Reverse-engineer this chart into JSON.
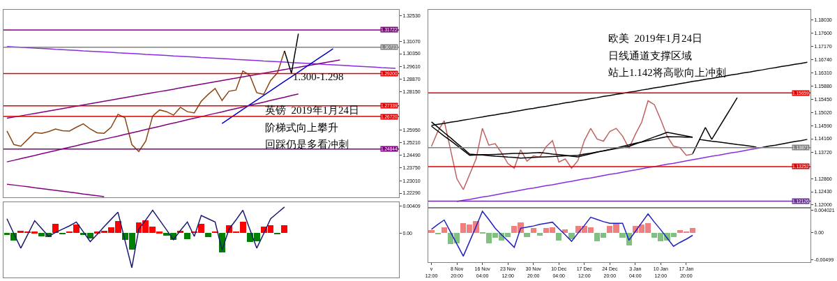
{
  "chart_data": [
    {
      "type": "line",
      "categories": [
        null,
        null,
        null,
        null,
        null,
        null,
        null,
        null,
        null,
        null,
        null,
        null,
        null,
        null,
        null,
        null,
        null,
        null,
        null,
        null,
        null,
        null,
        null,
        null,
        null,
        null,
        null,
        null,
        null,
        null,
        null,
        null,
        null,
        null,
        null,
        null,
        null,
        null,
        null,
        null,
        null,
        null,
        null,
        null,
        null,
        null,
        null,
        null,
        null,
        null,
        null,
        null,
        null,
        null,
        null,
        null,
        null
      ],
      "tick_labels": "y",
      "ylim": [
        1.2205,
        1.3289
      ],
      "yticks": [
        {
          "value": 1.3253,
          "label": "1.32530"
        },
        {
          "value": 1.3107,
          "label": "1.31070"
        },
        {
          "value": 1.3035,
          "label": "1.30350"
        },
        {
          "value": 1.2961,
          "label": "1.29610"
        },
        {
          "value": 1.2887,
          "label": "1.28870"
        },
        {
          "value": 1.2815,
          "label": "1.28150"
        },
        {
          "value": 1.2595,
          "label": "1.25950"
        },
        {
          "value": 1.2521,
          "label": "1.25210"
        },
        {
          "value": 1.2449,
          "label": "1.24490"
        },
        {
          "value": 1.2375,
          "label": "1.23750"
        },
        {
          "value": 1.2301,
          "label": "1.23010"
        },
        {
          "value": 1.2229,
          "label": "1.22290"
        }
      ],
      "series": [
        {
          "color": "#8b4513",
          "values": [
            1.2588,
            1.251,
            1.25,
            1.254,
            1.258,
            1.2575,
            1.2585,
            1.26,
            1.259,
            1.2588,
            1.261,
            1.263,
            1.26,
            1.2578,
            1.2575,
            1.261,
            1.2685,
            1.2665,
            1.251,
            1.247,
            1.253,
            1.2675,
            1.271,
            1.27,
            1.268,
            1.2725,
            1.27,
            1.2693,
            1.276,
            1.28,
            1.2834,
            1.2765,
            1.2818,
            1.2825,
            1.2935,
            1.291,
            1.281,
            1.28,
            1.288,
            1.2925,
            1.3051,
            null,
            null,
            null,
            null,
            null,
            null,
            null,
            null,
            null,
            null,
            null,
            null,
            null,
            null,
            null,
            null
          ]
        },
        {
          "color": "#8a2be2",
          "values": [
            1.3076,
            1.3074,
            1.3072,
            1.3069,
            1.3067,
            1.3065,
            1.3063,
            1.306,
            1.3058,
            1.3056,
            1.3054,
            1.3051,
            1.3049,
            1.3047,
            1.3045,
            1.3043,
            1.304,
            1.3038,
            1.3036,
            1.3034,
            1.3031,
            1.3029,
            1.3027,
            1.3025,
            1.3022,
            1.302,
            1.3018,
            1.3016,
            1.3013,
            1.3011,
            1.3009,
            1.3007,
            1.3005,
            1.3002,
            1.3,
            1.2998,
            1.2996,
            1.2993,
            1.2991,
            1.2989,
            1.2987,
            1.2984,
            1.2982,
            1.298,
            1.2978,
            1.2976,
            1.2973,
            1.2971,
            1.2969,
            1.2967,
            1.2964,
            1.2962,
            1.296,
            1.2958,
            1.2955,
            1.2953,
            1.2951
          ]
        },
        {
          "color": "#800080",
          "values": [
            1.2662,
            1.2669,
            1.2676,
            1.2683,
            1.269,
            1.2697,
            1.2704,
            1.2711,
            1.2718,
            1.2725,
            1.2732,
            1.2739,
            1.2746,
            1.2753,
            1.276,
            1.2767,
            1.2774,
            1.2781,
            1.2788,
            1.2795,
            1.2802,
            1.2809,
            1.2816,
            1.2823,
            1.283,
            1.2838,
            1.2845,
            1.2852,
            1.2859,
            1.2866,
            1.2873,
            1.288,
            1.2887,
            1.2894,
            1.2901,
            1.2908,
            1.2915,
            1.2922,
            1.2929,
            1.2936,
            1.2943,
            1.295,
            1.2957,
            1.2964,
            1.2971,
            1.2978,
            1.2985,
            1.2992,
            1.2999,
            null,
            null,
            null,
            null,
            null,
            null,
            null,
            null
          ]
        },
        {
          "color": "#800080",
          "values": [
            1.241,
            1.2419,
            1.2429,
            1.2438,
            1.2447,
            1.2457,
            1.2466,
            1.2475,
            1.2485,
            1.2494,
            1.2503,
            1.2513,
            1.2522,
            1.2531,
            1.2541,
            1.255,
            1.2559,
            1.2569,
            1.2578,
            1.2587,
            1.2597,
            1.2606,
            1.2615,
            1.2625,
            1.2634,
            1.2643,
            1.2653,
            1.2662,
            1.2671,
            1.2681,
            1.269,
            1.2699,
            1.2709,
            1.2718,
            1.2727,
            1.2737,
            1.2746,
            1.2755,
            1.2765,
            1.2774,
            1.2783,
            1.2793,
            1.2802,
            null,
            null,
            null,
            null,
            null,
            null,
            null,
            null,
            null,
            null,
            null,
            null,
            null,
            null
          ]
        },
        {
          "color": "#0000cd",
          "values": [
            null,
            null,
            null,
            null,
            null,
            null,
            null,
            null,
            null,
            null,
            null,
            null,
            null,
            null,
            null,
            null,
            null,
            null,
            null,
            null,
            null,
            null,
            null,
            null,
            null,
            null,
            null,
            null,
            null,
            null,
            null,
            1.2632,
            1.2659,
            1.2686,
            1.2713,
            1.274,
            1.2767,
            1.2794,
            1.2821,
            1.2848,
            1.2875,
            1.2902,
            1.2929,
            1.2956,
            1.2983,
            1.301,
            1.3037,
            1.3064,
            null,
            null,
            null,
            null,
            null,
            null,
            null,
            null,
            null
          ]
        },
        {
          "color": "#800080",
          "values": [
            1.2281,
            1.2276,
            1.2271,
            1.2266,
            1.226,
            1.2255,
            1.225,
            1.2245,
            1.224,
            1.2235,
            1.223,
            1.2224,
            1.2219,
            1.2214,
            1.2209,
            null,
            null,
            null,
            null,
            null,
            null,
            null,
            null,
            null,
            null,
            null,
            null,
            null,
            null,
            null,
            null,
            null,
            null,
            null,
            null,
            null,
            null,
            null,
            null,
            null,
            null,
            null,
            null,
            null,
            null,
            null,
            null,
            null,
            null,
            null,
            null,
            null,
            null,
            null,
            null,
            null,
            null
          ]
        },
        {
          "color": "#000000",
          "values": [
            null,
            null,
            null,
            null,
            null,
            null,
            null,
            null,
            null,
            null,
            null,
            null,
            null,
            null,
            null,
            null,
            null,
            null,
            null,
            null,
            null,
            null,
            null,
            null,
            null,
            null,
            null,
            null,
            null,
            null,
            null,
            null,
            null,
            null,
            null,
            null,
            null,
            null,
            null,
            null,
            1.3051,
            1.2922,
            1.315,
            null,
            null,
            null,
            null,
            null,
            null,
            null,
            null,
            null,
            null,
            null,
            null,
            null,
            null
          ]
        }
      ],
      "ref_lines": [
        {
          "axis": "y",
          "value": 1.31722,
          "label": "1.31722",
          "color": "#800080"
        },
        {
          "axis": "y",
          "value": 1.30723,
          "label": "1.30723",
          "color": "#808080"
        },
        {
          "axis": "y",
          "value": 1.292,
          "label": "1.29200",
          "color": "#e00000"
        },
        {
          "axis": "y",
          "value": 1.27339,
          "label": "1.27339",
          "color": "#e00000"
        },
        {
          "axis": "y",
          "value": 1.2672,
          "label": "1.26720",
          "color": "#e00000"
        },
        {
          "axis": "y",
          "value": 1.24844,
          "label": "1.24844",
          "color": "#800080"
        }
      ],
      "annotations": [
        "1.300-1.298",
        "英镑  2019年1月24日",
        "阶梯式向上攀升",
        "回踩仍是多看冲刺"
      ]
    },
    {
      "type": "bar",
      "categories": [
        null,
        null,
        null,
        null,
        null,
        null,
        null,
        null,
        null,
        null,
        null,
        null,
        null,
        null,
        null,
        null,
        null,
        null,
        null,
        null,
        null,
        null,
        null,
        null,
        null,
        null,
        null,
        null,
        null,
        null,
        null,
        null,
        null,
        null,
        null,
        null,
        null,
        null,
        null,
        null,
        null,
        null,
        null,
        null,
        null,
        null,
        null,
        null,
        null,
        null,
        null,
        null,
        null,
        null,
        null,
        null,
        null
      ],
      "tick_labels": "y",
      "ylim": [
        -0.0068,
        0.00473
      ],
      "yticks": [
        0.00409,
        {
          "value": 0,
          "label": "0.00"
        }
      ],
      "series": [
        {
          "values": [
            -0.0003,
            -0.0011,
            0.0004,
            0.0003,
            0.0002,
            -0.0005,
            -0.0006,
            0.0014,
            -0.0002,
            0.0003,
            0.0013,
            -0.0003,
            -0.0008,
            0.0002,
            0.0004,
            0.0009,
            0.0019,
            -0.001,
            -0.0025,
            0.0016,
            0.002,
            0.001,
            0.0002,
            -0.0004,
            -0.001,
            0.0004,
            -0.0009,
            0.0003,
            0.0014,
            -0.0006,
            0.0003,
            -0.003,
            0.0012,
            0.0003,
            0.0017,
            -0.0014,
            -0.0012,
            0.001,
            0.0012,
            -0.0002,
            0.0012,
            null,
            null,
            null,
            null,
            null,
            null,
            null,
            null,
            null,
            null,
            null,
            null,
            null,
            null,
            null,
            null
          ],
          "colors": [
            "#008000",
            "#008000",
            "#ff0000",
            "#ff0000",
            "#ff0000",
            "#008000",
            "#008000",
            "#ff0000",
            "#008000",
            "#ff0000",
            "#ff0000",
            "#008000",
            "#008000",
            "#ff0000",
            "#ff0000",
            "#ff0000",
            "#ff0000",
            "#008000",
            "#008000",
            "#ff0000",
            "#ff0000",
            "#ff0000",
            "#ff0000",
            "#008000",
            "#008000",
            "#ff0000",
            "#008000",
            "#ff0000",
            "#ff0000",
            "#008000",
            "#ff0000",
            "#008000",
            "#ff0000",
            "#ff0000",
            "#ff0000",
            "#008000",
            "#008000",
            "#ff0000",
            "#ff0000",
            "#008000",
            "#ff0000",
            null,
            null,
            null,
            null,
            null,
            null,
            null,
            null,
            null,
            null,
            null,
            null,
            null,
            null,
            null,
            null
          ]
        },
        {
          "type": "line",
          "color": "#191970",
          "values": [
            0.0022,
            -0.0001,
            -0.0023,
            -0.0002,
            0.0019,
            0.0007,
            -0.0005,
            0.0001,
            0.0006,
            0.0011,
            0.0017,
            0.0002,
            -0.0013,
            -0.0002,
            0.001,
            0.0021,
            0.0032,
            -0.0011,
            -0.0053,
            0.0006,
            0.002,
            0.0035,
            0.002,
            0.0005,
            -0.001,
            0.0004,
            0.0017,
            -0.0005,
            0.0027,
            0.0022,
            0.0017,
            -0.0026,
            0.0006,
            0.002,
            0.0035,
            0.0006,
            -0.0023,
            -0.0001,
            0.0022,
            0.0031,
            0.004,
            null,
            null,
            null,
            null,
            null,
            null,
            null,
            null,
            null,
            null,
            null,
            null,
            null,
            null,
            null,
            null
          ]
        }
      ]
    },
    {
      "type": "line",
      "categories": [
        null,
        null,
        null,
        null,
        null,
        null,
        null,
        null,
        null,
        null,
        null,
        null,
        null,
        null,
        null,
        null,
        null,
        null,
        null,
        null,
        null,
        null,
        null,
        null,
        null,
        null,
        null,
        null,
        null,
        null,
        null,
        null,
        null,
        null,
        null,
        null,
        null,
        null,
        null,
        null,
        null,
        null,
        null,
        null,
        null,
        null,
        null,
        null,
        null,
        null,
        null,
        null,
        null,
        null,
        null,
        null,
        null,
        null,
        null,
        null
      ],
      "tick_labels": "y",
      "ylim": [
        1.1193,
        1.1837
      ],
      "yticks": [
        {
          "value": 1.1803,
          "label": "1.18030"
        },
        {
          "value": 1.176,
          "label": "1.17600"
        },
        {
          "value": 1.1717,
          "label": "1.17170"
        },
        {
          "value": 1.1674,
          "label": "1.16740"
        },
        {
          "value": 1.1631,
          "label": "1.16310"
        },
        {
          "value": 1.1588,
          "label": "1.15880"
        },
        {
          "value": 1.1545,
          "label": "1.15450"
        },
        {
          "value": 1.1502,
          "label": "1.15020"
        },
        {
          "value": 1.1459,
          "label": "1.14590"
        },
        {
          "value": 1.1416,
          "label": "1.14160"
        },
        {
          "value": 1.1372,
          "label": "1.13720"
        },
        {
          "value": 1.1286,
          "label": "1.12860"
        },
        {
          "value": 1.1243,
          "label": "1.12430"
        },
        {
          "value": 1.12,
          "label": "1.12000"
        }
      ],
      "series": [
        {
          "color": "#c06060",
          "values": [
            1.1391,
            1.144,
            1.1475,
            1.138,
            1.1285,
            1.125,
            1.13,
            1.135,
            1.145,
            1.1395,
            1.14,
            1.137,
            1.1335,
            1.132,
            1.138,
            1.1343,
            1.136,
            1.1356,
            1.139,
            1.141,
            1.134,
            1.135,
            1.132,
            1.1345,
            1.141,
            1.145,
            1.1415,
            1.1408,
            1.144,
            1.145,
            1.1425,
            1.1385,
            1.143,
            1.147,
            1.154,
            1.1527,
            1.1478,
            1.1425,
            1.1392,
            1.1387,
            1.1362,
            1.1366,
            null,
            null,
            null,
            null,
            null,
            null,
            null,
            null,
            null,
            null,
            null,
            null,
            null,
            null,
            null,
            null,
            null,
            null
          ]
        },
        {
          "color": "#000000",
          "values": [
            1.1471,
            1.1454,
            1.1436,
            1.1419,
            1.1401,
            1.1384,
            1.1366,
            1.1364,
            1.1363,
            1.1361,
            1.1359,
            1.1358,
            1.1356,
            1.1355,
            1.1353,
            1.1354,
            1.1355,
            1.1356,
            1.1357,
            1.1358,
            1.1359,
            1.136,
            1.1361,
            1.1362,
            1.1366,
            1.1369,
            1.1373,
            1.1376,
            1.138,
            1.1384,
            1.1387,
            1.1391,
            1.1399,
            1.1406,
            1.1414,
            1.1422,
            1.1429,
            1.1437,
            1.1433,
            1.1429,
            1.1425,
            1.1421,
            null,
            null,
            null,
            null,
            null,
            null,
            null,
            null,
            null,
            null,
            null,
            null,
            null,
            null,
            null,
            null,
            null,
            null
          ]
        },
        {
          "color": "#000000",
          "values": [
            1.1457,
            1.1441,
            1.1425,
            1.141,
            1.1394,
            1.1378,
            1.1362,
            1.1363,
            1.1364,
            1.1364,
            1.1365,
            1.1366,
            1.1367,
            1.1368,
            1.1368,
            1.1369,
            1.137,
            1.1371,
            1.1369,
            1.1366,
            1.1364,
            1.1362,
            1.1359,
            1.1357,
            1.1362,
            1.1367,
            1.1372,
            1.1377,
            1.1381,
            1.1386,
            1.1391,
            1.1396,
            1.1401,
            1.1405,
            1.141,
            1.1414,
            1.1419,
            1.1423,
            1.1422,
            1.1422,
            1.1421,
            1.1421,
            null,
            null,
            null,
            null,
            null,
            null,
            null,
            null,
            null,
            null,
            null,
            null,
            null,
            null,
            null,
            null,
            null,
            null
          ]
        },
        {
          "color": "#000000",
          "values": [
            1.1459,
            1.1463,
            1.1466,
            1.147,
            1.1473,
            1.1477,
            1.148,
            1.1484,
            1.1487,
            1.1491,
            1.1494,
            1.1498,
            1.1501,
            1.1505,
            1.1508,
            1.1512,
            1.1515,
            1.1519,
            1.1522,
            1.1526,
            1.1529,
            1.1533,
            1.1536,
            1.154,
            1.1543,
            1.1547,
            1.155,
            1.1554,
            1.1557,
            1.1561,
            1.1564,
            1.1568,
            1.1571,
            1.1575,
            1.1578,
            1.1582,
            1.1585,
            1.1589,
            1.1592,
            1.1596,
            1.1599,
            1.1603,
            1.1606,
            1.161,
            1.1613,
            1.1617,
            1.162,
            1.1624,
            1.1627,
            1.1631,
            1.1634,
            1.1638,
            1.1641,
            1.1645,
            1.1648,
            1.1652,
            1.1655,
            1.1659,
            1.1662,
            1.1666
          ]
        },
        {
          "color": "#000000",
          "values": [
            null,
            null,
            null,
            null,
            null,
            null,
            null,
            null,
            null,
            null,
            null,
            null,
            null,
            null,
            null,
            null,
            null,
            null,
            null,
            null,
            null,
            null,
            null,
            null,
            null,
            null,
            null,
            null,
            null,
            null,
            null,
            null,
            null,
            null,
            null,
            null,
            null,
            null,
            null,
            null,
            null,
            null,
            null,
            null,
            null,
            null,
            null,
            null,
            null,
            null,
            null,
            null,
            1.1388,
            1.1392,
            1.1395,
            1.1399,
            1.1403,
            1.1407,
            1.141,
            1.1414
          ]
        },
        {
          "color": "#8a2be2",
          "values": [
            null,
            null,
            null,
            null,
            1.1211,
            1.1215,
            1.1218,
            1.1222,
            1.1226,
            1.1229,
            1.1233,
            1.1237,
            1.1241,
            1.1244,
            1.1248,
            1.1252,
            1.1255,
            1.1259,
            1.1263,
            1.1266,
            1.127,
            1.1274,
            1.1277,
            1.1281,
            1.1285,
            1.1288,
            1.1292,
            1.1296,
            1.13,
            1.1303,
            1.1307,
            1.1311,
            1.1314,
            1.1318,
            1.1322,
            1.1325,
            1.1329,
            1.1333,
            1.1336,
            1.134,
            1.1344,
            1.1348,
            1.1351,
            1.1355,
            1.1359,
            1.1362,
            1.1366,
            1.137,
            1.1373,
            1.1377,
            1.1381,
            1.1384,
            1.1388,
            null,
            null,
            null,
            null,
            null,
            null,
            null
          ]
        },
        {
          "color": "#000000",
          "values": [
            null,
            null,
            null,
            null,
            null,
            null,
            null,
            null,
            null,
            null,
            null,
            null,
            null,
            null,
            null,
            null,
            null,
            null,
            null,
            null,
            null,
            null,
            null,
            null,
            null,
            null,
            null,
            null,
            null,
            null,
            null,
            null,
            null,
            null,
            null,
            null,
            null,
            null,
            null,
            null,
            null,
            1.1367,
            1.141,
            1.1453,
            1.1414,
            1.1448,
            1.1482,
            1.1516,
            1.155,
            null,
            null,
            null,
            null,
            null,
            null,
            null,
            null,
            null,
            null,
            null
          ]
        },
        {
          "color": "#000000",
          "values": [
            null,
            null,
            null,
            null,
            null,
            null,
            null,
            null,
            null,
            null,
            null,
            null,
            null,
            null,
            null,
            null,
            null,
            null,
            null,
            null,
            null,
            null,
            null,
            null,
            null,
            null,
            null,
            null,
            null,
            null,
            null,
            null,
            null,
            null,
            null,
            null,
            null,
            null,
            null,
            null,
            null,
            null,
            1.1414,
            1.1411,
            1.1408,
            1.1406,
            1.1403,
            1.14,
            1.1397,
            1.1395,
            1.1392,
            1.1389,
            null,
            null,
            null,
            null,
            null,
            null,
            null,
            null
          ]
        }
      ],
      "ref_lines": [
        {
          "axis": "y",
          "value": 1.15659,
          "label": "1.15659",
          "color": "#e00000"
        },
        {
          "axis": "y",
          "value": 1.13871,
          "label": "1.13871",
          "color": "#808080"
        },
        {
          "axis": "y",
          "value": 1.13252,
          "label": "1.13252",
          "color": "#e00000"
        },
        {
          "axis": "y",
          "value": 1.12126,
          "label": "1.12126",
          "color": "#6a2c9a"
        }
      ],
      "annotations": [
        "欧美  2019年1月24日",
        "日线通道支撑区域",
        "站上1.142将高歌向上冲刺"
      ]
    },
    {
      "type": "bar",
      "categories": [
        "v 12:00",
        null,
        null,
        null,
        "8 Nov 20:00",
        null,
        null,
        null,
        "16 Nov 04:00",
        null,
        null,
        null,
        "23 Nov 12:00",
        null,
        null,
        null,
        "30 Nov 20:00",
        null,
        null,
        null,
        "10 Dec 04:00",
        null,
        null,
        null,
        "17 Dec 12:00",
        null,
        null,
        null,
        "24 Dec 20:00",
        null,
        null,
        null,
        "3 Jan 04:00",
        null,
        null,
        null,
        "10 Jan 12:00",
        null,
        null,
        null,
        "17 Jan 20:00",
        null,
        null,
        null,
        null,
        null,
        null,
        null,
        null,
        null,
        null,
        null,
        null,
        null,
        null,
        null,
        null,
        null,
        null,
        null
      ],
      "ylim": [
        -0.0054,
        0.0044
      ],
      "yticks": [
        0.004021,
        {
          "value": 0,
          "label": "0.00"
        },
        -0.00499
      ],
      "series": [
        {
          "values": [
            0.0004,
            -0.0003,
            0.001,
            -0.0021,
            -0.0019,
            0.0017,
            0.0015,
            0.0021,
            -0.0002,
            -0.0019,
            -0.001,
            -0.0014,
            -0.0008,
            0.0012,
            0.0019,
            -0.0008,
            0.0008,
            -0.0005,
            0.0008,
            0.001,
            -0.0014,
            0.0006,
            -0.0012,
            0.0012,
            0.0012,
            0.001,
            -0.0016,
            -0.001,
            0.0012,
            0.0017,
            -0.001,
            -0.0023,
            0.0012,
            0.0015,
            0.0017,
            -0.001,
            -0.0016,
            -0.0014,
            -0.0008,
            0.0004,
            0.0002,
            0.0008,
            null,
            null,
            null,
            null,
            null,
            null,
            null,
            null,
            null,
            null,
            null,
            null,
            null,
            null,
            null,
            null,
            null,
            null
          ],
          "colors": [
            "#f08080",
            "#80c080",
            "#f08080",
            "#80c080",
            "#80c080",
            "#f08080",
            "#f08080",
            "#f08080",
            "#80c080",
            "#80c080",
            "#80c080",
            "#80c080",
            "#80c080",
            "#f08080",
            "#f08080",
            "#80c080",
            "#f08080",
            "#80c080",
            "#f08080",
            "#f08080",
            "#80c080",
            "#f08080",
            "#80c080",
            "#f08080",
            "#f08080",
            "#f08080",
            "#80c080",
            "#80c080",
            "#f08080",
            "#f08080",
            "#80c080",
            "#80c080",
            "#f08080",
            "#f08080",
            "#f08080",
            "#80c080",
            "#80c080",
            "#80c080",
            "#80c080",
            "#f08080",
            "#f08080",
            "#f08080",
            null,
            null,
            null,
            null,
            null,
            null,
            null,
            null,
            null,
            null,
            null,
            null,
            null,
            null,
            null,
            null,
            null,
            null
          ]
        },
        {
          "type": "line",
          "color": "#2020c0",
          "values": [
            0.0006,
            0.0015,
            0.0023,
            0.0001,
            -0.0021,
            -0.0043,
            -0.0016,
            0.0011,
            0.0039,
            0.0024,
            0.0008,
            -0.0004,
            -0.0015,
            -0.0027,
            0.0008,
            0.001,
            0.0012,
            0.0015,
            0.0017,
            0.0019,
            0.0007,
            -0.0004,
            -0.0016,
            -0.0001,
            0.0013,
            0.0028,
            0.0024,
            0.002,
            0.0017,
            0.0017,
            0.0017,
            -0.0014,
            0.0002,
            0.0018,
            0.0034,
            0.0019,
            0.0005,
            -0.001,
            -0.0025,
            -0.0018,
            -0.0012,
            -0.0005,
            null,
            null,
            null,
            null,
            null,
            null,
            null,
            null,
            null,
            null,
            null,
            null,
            null,
            null,
            null,
            null,
            null,
            null
          ]
        }
      ]
    }
  ]
}
